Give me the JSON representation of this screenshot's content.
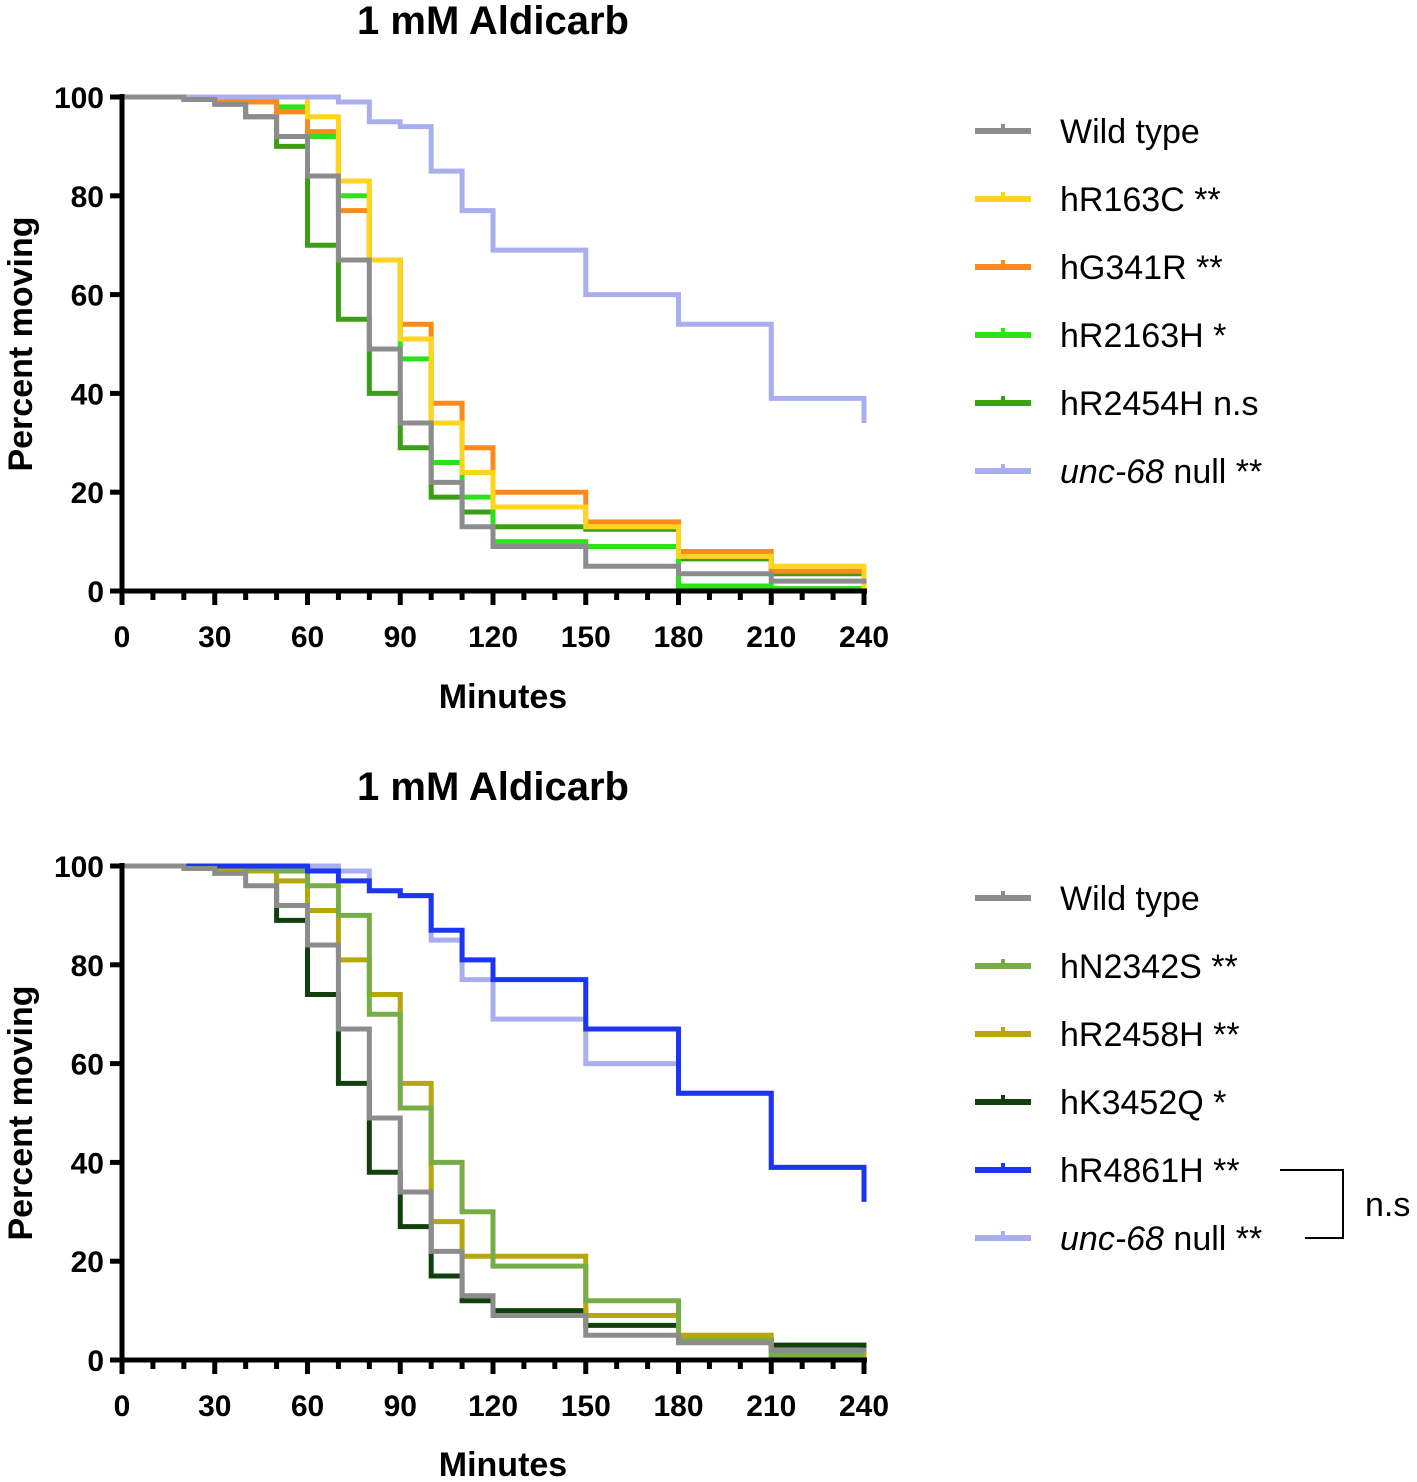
{
  "chart_data": [
    {
      "type": "line",
      "step": true,
      "title": "1 mM Aldicarb",
      "xlabel": "Minutes",
      "ylabel": "Percent moving",
      "xlim": [
        0,
        240
      ],
      "ylim": [
        0,
        100
      ],
      "xticks": [
        0,
        30,
        60,
        90,
        120,
        150,
        180,
        210,
        240
      ],
      "xtick_labels": [
        "0",
        "30",
        "60",
        "90",
        "120",
        "150",
        "180",
        "210",
        "240"
      ],
      "yticks": [
        0,
        20,
        40,
        60,
        80,
        100
      ],
      "ytick_labels": [
        "0",
        "20",
        "40",
        "60",
        "80",
        "100"
      ],
      "legend_position": "right",
      "series": [
        {
          "name": "hR2454H",
          "legend_main": "hR2454H",
          "legend_italic": "",
          "legend_suffix": " n.s",
          "color": "#3c9e17",
          "x": [
            0,
            20,
            30,
            40,
            50,
            60,
            70,
            80,
            90,
            100,
            110,
            120,
            150,
            180,
            210,
            240
          ],
          "values": [
            100,
            99.5,
            99,
            96,
            90,
            70,
            55,
            40,
            29,
            19,
            16,
            13,
            12.5,
            6.5,
            3.5,
            3
          ]
        },
        {
          "name": "hR2163H",
          "legend_main": "hR2163H",
          "legend_italic": "",
          "legend_suffix": " *",
          "color": "#2ee21b",
          "x": [
            0,
            20,
            30,
            40,
            50,
            60,
            70,
            80,
            90,
            100,
            110,
            120,
            150,
            180,
            210,
            240
          ],
          "values": [
            100,
            100,
            99.5,
            99,
            98,
            92,
            80,
            67,
            47,
            26,
            19,
            10,
            9,
            1,
            0.5,
            0.5
          ]
        },
        {
          "name": "hG341R",
          "legend_main": "hG341R",
          "legend_italic": "",
          "legend_suffix": " **",
          "color": "#fa8b1a",
          "x": [
            0,
            20,
            30,
            40,
            50,
            60,
            70,
            80,
            90,
            100,
            110,
            120,
            150,
            180,
            210,
            240
          ],
          "values": [
            100,
            100,
            99.5,
            99,
            97,
            93,
            77,
            67,
            54,
            38,
            29,
            20,
            14,
            8,
            4,
            4
          ]
        },
        {
          "name": "hR163C",
          "legend_main": "hR163C",
          "legend_italic": "",
          "legend_suffix": " **",
          "color": "#ffd41f",
          "x": [
            0,
            20,
            30,
            40,
            50,
            60,
            70,
            80,
            90,
            100,
            110,
            120,
            150,
            180,
            210,
            240
          ],
          "values": [
            100,
            100,
            100,
            100,
            100,
            96,
            83,
            67,
            51,
            34,
            24,
            17,
            13,
            7,
            5,
            0
          ]
        },
        {
          "name": "unc-68 null",
          "legend_main": "",
          "legend_italic": "unc-68",
          "legend_suffix": " null **",
          "color": "#a9afee",
          "x": [
            0,
            20,
            30,
            40,
            50,
            60,
            70,
            80,
            90,
            100,
            110,
            120,
            150,
            180,
            210,
            240
          ],
          "values": [
            100,
            100,
            100,
            100,
            100,
            100,
            99,
            95,
            94,
            85,
            77,
            69,
            60,
            54,
            39,
            34
          ]
        },
        {
          "name": "Wild type",
          "legend_main": "Wild type",
          "legend_italic": "",
          "legend_suffix": "",
          "color": "#8c8c8c",
          "x": [
            0,
            20,
            30,
            40,
            50,
            60,
            70,
            80,
            90,
            100,
            110,
            120,
            150,
            180,
            210,
            240
          ],
          "values": [
            100,
            99.5,
            98.5,
            96,
            92,
            84,
            67,
            49,
            34,
            22,
            13,
            9,
            5,
            3.5,
            2,
            1.5
          ]
        }
      ]
    },
    {
      "type": "line",
      "step": true,
      "title": "1 mM Aldicarb",
      "xlabel": "Minutes",
      "ylabel": "Percent moving",
      "xlim": [
        0,
        240
      ],
      "ylim": [
        0,
        100
      ],
      "xticks": [
        0,
        30,
        60,
        90,
        120,
        150,
        180,
        210,
        240
      ],
      "xtick_labels": [
        "0",
        "30",
        "60",
        "90",
        "120",
        "150",
        "180",
        "210",
        "240"
      ],
      "yticks": [
        0,
        20,
        40,
        60,
        80,
        100
      ],
      "ytick_labels": [
        "0",
        "20",
        "40",
        "60",
        "80",
        "100"
      ],
      "legend_position": "right",
      "annotation": {
        "text": "n.s",
        "between": [
          "hR4861H",
          "unc-68 null"
        ]
      },
      "series": [
        {
          "name": "hK3452Q",
          "legend_main": "hK3452Q",
          "legend_italic": "",
          "legend_suffix": " *",
          "color": "#11400c",
          "x": [
            0,
            20,
            30,
            40,
            50,
            60,
            70,
            80,
            90,
            100,
            110,
            120,
            150,
            180,
            210,
            240
          ],
          "values": [
            100,
            100,
            99.5,
            99,
            89,
            74,
            56,
            38,
            27,
            17,
            12,
            10,
            7,
            4,
            3,
            1.5
          ]
        },
        {
          "name": "hR2458H",
          "legend_main": "hR2458H",
          "legend_italic": "",
          "legend_suffix": " **",
          "color": "#b6a70d",
          "x": [
            0,
            20,
            30,
            40,
            50,
            60,
            70,
            80,
            90,
            100,
            110,
            120,
            150,
            180,
            210,
            240
          ],
          "values": [
            100,
            100,
            99.5,
            99,
            97,
            91,
            81,
            74,
            56,
            28,
            21,
            21,
            9,
            5,
            1,
            0.5
          ]
        },
        {
          "name": "hN2342S",
          "legend_main": "hN2342S",
          "legend_italic": "",
          "legend_suffix": " **",
          "color": "#76ad47",
          "x": [
            0,
            20,
            30,
            40,
            50,
            60,
            70,
            80,
            90,
            100,
            110,
            120,
            150,
            180,
            210,
            240
          ],
          "values": [
            100,
            100,
            100,
            99.5,
            99,
            96,
            90,
            70,
            51,
            40,
            30,
            19,
            12,
            4,
            1,
            1
          ]
        },
        {
          "name": "unc-68 null",
          "legend_main": "",
          "legend_italic": "unc-68",
          "legend_suffix": " null **",
          "color": "#a9afee",
          "x": [
            0,
            20,
            30,
            40,
            50,
            60,
            70,
            80,
            90,
            100,
            110,
            120,
            150,
            180,
            210,
            240
          ],
          "values": [
            100,
            100,
            100,
            100,
            100,
            100,
            99,
            95,
            94,
            85,
            77,
            69,
            60,
            54,
            39,
            34
          ]
        },
        {
          "name": "hR4861H",
          "legend_main": "hR4861H",
          "legend_italic": "",
          "legend_suffix": " **",
          "color": "#1b35f2",
          "x": [
            0,
            20,
            30,
            40,
            50,
            60,
            70,
            80,
            90,
            100,
            110,
            120,
            150,
            180,
            210,
            240
          ],
          "values": [
            100,
            100,
            100,
            100,
            100,
            99,
            97,
            95,
            94,
            87,
            81,
            77,
            67,
            54,
            39,
            32
          ]
        },
        {
          "name": "Wild type",
          "legend_main": "Wild type",
          "legend_italic": "",
          "legend_suffix": "",
          "color": "#8c8c8c",
          "x": [
            0,
            20,
            30,
            40,
            50,
            60,
            70,
            80,
            90,
            100,
            110,
            120,
            150,
            180,
            210,
            240
          ],
          "values": [
            100,
            99.5,
            98.5,
            96,
            92,
            84,
            67,
            49,
            34,
            22,
            13,
            9,
            5,
            3.5,
            2,
            1.5
          ]
        }
      ]
    }
  ],
  "legend_orders": [
    [
      "Wild type",
      "hR163C",
      "hG341R",
      "hR2163H",
      "hR2454H",
      "unc-68 null"
    ],
    [
      "Wild type",
      "hN2342S",
      "hR2458H",
      "hK3452Q",
      "hR4861H",
      "unc-68 null"
    ]
  ]
}
